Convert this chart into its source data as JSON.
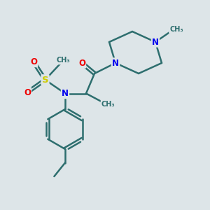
{
  "bg_color": "#dde5e8",
  "bond_color": "#2d6e6e",
  "bond_width": 1.8,
  "N_color": "#0000ee",
  "O_color": "#ee0000",
  "S_color": "#cccc00",
  "text_fontsize": 8.5,
  "fig_width": 3.0,
  "fig_height": 3.0,
  "dpi": 100,
  "xlim": [
    0,
    10
  ],
  "ylim": [
    0,
    10
  ]
}
